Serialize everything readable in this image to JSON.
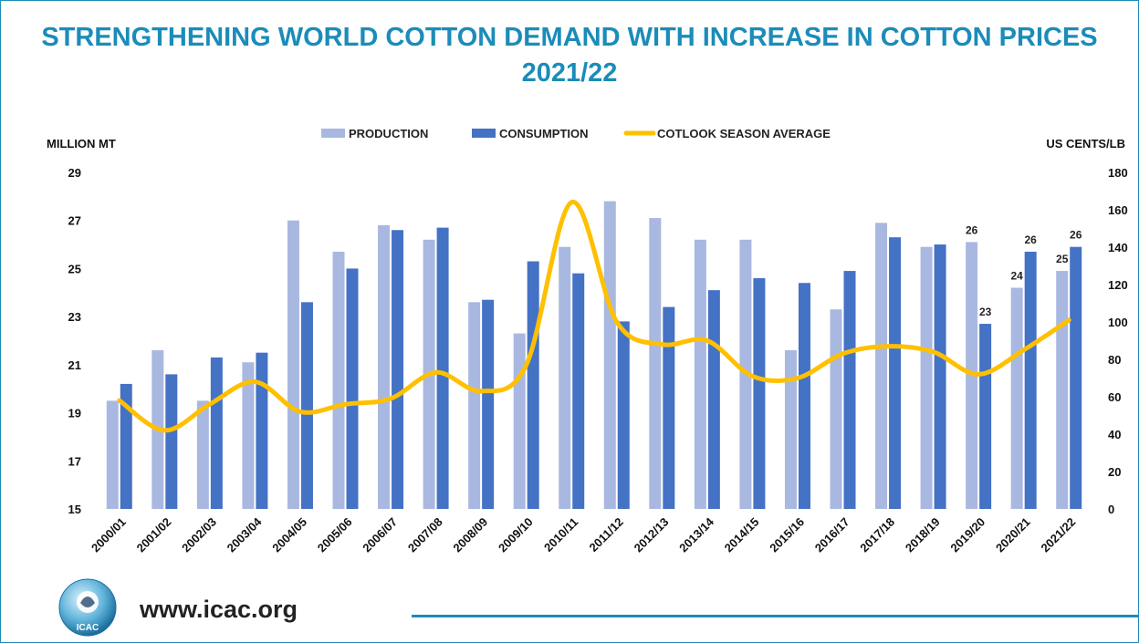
{
  "title_line1": "STRENGTHENING WORLD COTTON DEMAND WITH INCREASE IN COTTON PRICES",
  "title_line2": "2021/22",
  "footer": {
    "url": "www.icac.org",
    "logo_text": "ICAC"
  },
  "colors": {
    "production": "#a9b8e0",
    "consumption": "#4472c4",
    "price": "#ffc000",
    "title": "#1b8cb9"
  },
  "chart_data": {
    "type": "bar",
    "categories": [
      "2000/01",
      "2001/02",
      "2002/03",
      "2003/04",
      "2004/05",
      "2005/06",
      "2006/07",
      "2007/08",
      "2008/09",
      "2009/10",
      "2010/11",
      "2011/12",
      "2012/13",
      "2013/14",
      "2014/15",
      "2015/16",
      "2016/17",
      "2017/18",
      "2018/19",
      "2019/20",
      "2020/21",
      "2021/22"
    ],
    "series": [
      {
        "name": "PRODUCTION",
        "type": "bar",
        "axis": "left",
        "values": [
          19.5,
          21.6,
          19.5,
          21.1,
          27.0,
          25.7,
          26.8,
          26.2,
          23.6,
          22.3,
          25.9,
          27.8,
          27.1,
          26.2,
          26.2,
          21.6,
          23.3,
          26.9,
          25.9,
          26.1,
          24.2,
          24.9
        ]
      },
      {
        "name": "CONSUMPTION",
        "type": "bar",
        "axis": "left",
        "values": [
          20.2,
          20.6,
          21.3,
          21.5,
          23.6,
          25.0,
          26.6,
          26.7,
          23.7,
          25.3,
          24.8,
          22.8,
          23.4,
          24.1,
          24.6,
          24.4,
          24.9,
          26.3,
          26.0,
          22.7,
          25.7,
          25.9
        ]
      },
      {
        "name": "COTLOOK SEASON AVERAGE",
        "type": "line",
        "axis": "right",
        "values": [
          58,
          42,
          56,
          68,
          52,
          56,
          59,
          73,
          63,
          77,
          164,
          100,
          88,
          90,
          71,
          70,
          83,
          87,
          84,
          72,
          85,
          101
        ]
      }
    ],
    "data_labels": [
      {
        "category": "2019/20",
        "series": "PRODUCTION",
        "text": "26"
      },
      {
        "category": "2019/20",
        "series": "CONSUMPTION",
        "text": "23"
      },
      {
        "category": "2020/21",
        "series": "PRODUCTION",
        "text": "24"
      },
      {
        "category": "2020/21",
        "series": "CONSUMPTION",
        "text": "26"
      },
      {
        "category": "2021/22",
        "series": "PRODUCTION",
        "text": "25"
      },
      {
        "category": "2021/22",
        "series": "CONSUMPTION",
        "text": "26"
      }
    ],
    "y_left": {
      "label": "MILLION MT",
      "ticks": [
        15,
        17,
        19,
        21,
        23,
        25,
        27,
        29
      ],
      "range": [
        15,
        29
      ]
    },
    "y_right": {
      "label": "US CENTS/LB",
      "ticks": [
        0,
        20,
        40,
        60,
        80,
        100,
        120,
        140,
        160,
        180
      ],
      "range": [
        0,
        180
      ]
    },
    "legend_position": "top",
    "grid": false
  }
}
